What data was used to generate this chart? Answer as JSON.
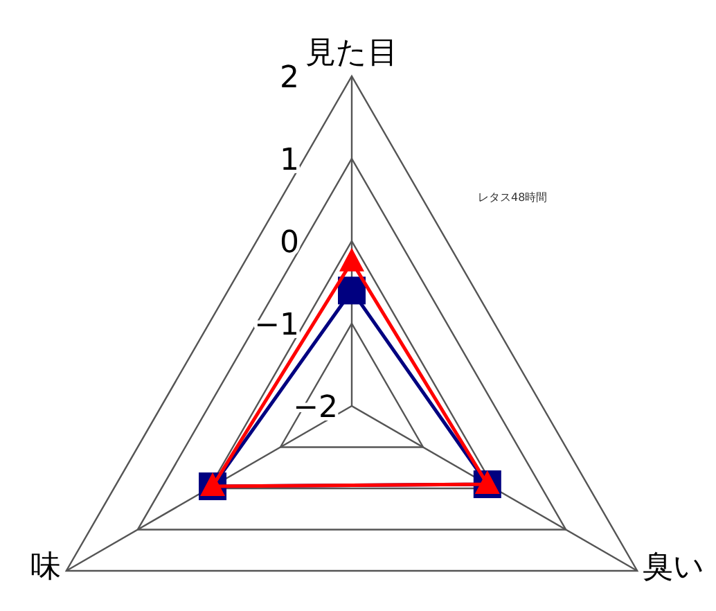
{
  "chart_data": {
    "type": "radar",
    "categories": [
      "見た目",
      "臭い",
      "味"
    ],
    "ylim": [
      -2,
      2
    ],
    "yticks": [
      2,
      1,
      0,
      -1,
      -2
    ],
    "grid": true,
    "series": [
      {
        "color": "#000080",
        "marker": "square",
        "values": [
          -0.6,
          -0.1,
          -0.05
        ]
      },
      {
        "color": "#ff0000",
        "marker": "triangle",
        "values": [
          -0.25,
          -0.1,
          -0.05
        ]
      }
    ],
    "annotations": [
      "レタス48時間"
    ]
  }
}
